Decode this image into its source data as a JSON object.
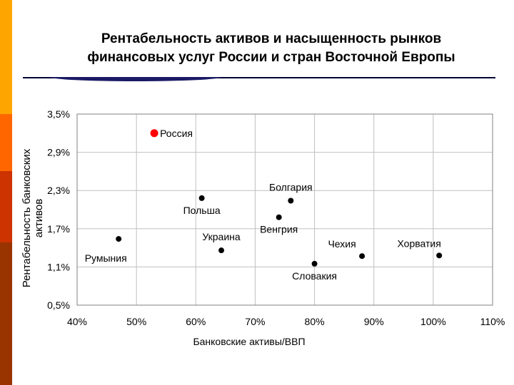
{
  "slide": {
    "title_line1": "Рентабельность активов и насыщенность рынков",
    "title_line2": "финансовых услуг России и стран Восточной Европы",
    "side_colors": [
      "#FFA500",
      "#FF6600",
      "#CC3300",
      "#993300"
    ]
  },
  "chart_data": {
    "type": "scatter",
    "xlabel": "Банковские активы/ВВП",
    "ylabel": "Рентабельность банковских активов",
    "xlim": [
      0.4,
      1.1
    ],
    "ylim": [
      0.005,
      0.035
    ],
    "x_ticks": [
      0.4,
      0.5,
      0.6,
      0.7,
      0.8,
      0.9,
      1.0,
      1.1
    ],
    "x_tick_labels": [
      "40%",
      "50%",
      "60%",
      "70%",
      "80%",
      "90%",
      "100%",
      "110%"
    ],
    "y_ticks": [
      0.005,
      0.011,
      0.017,
      0.023,
      0.029,
      0.035
    ],
    "y_tick_labels": [
      "0,5%",
      "1,1%",
      "1,7%",
      "2,3%",
      "2,9%",
      "3,5%"
    ],
    "grid": true,
    "points": [
      {
        "label": "Россия",
        "x": 0.53,
        "y": 0.032,
        "color": "#FF0000",
        "label_pos": "right"
      },
      {
        "label": "Польша",
        "x": 0.61,
        "y": 0.0218,
        "color": "#000000",
        "label_pos": "below"
      },
      {
        "label": "Болгария",
        "x": 0.76,
        "y": 0.0214,
        "color": "#000000",
        "label_pos": "above"
      },
      {
        "label": "Венгрия",
        "x": 0.74,
        "y": 0.0188,
        "color": "#000000",
        "label_pos": "below"
      },
      {
        "label": "Румыния",
        "x": 0.47,
        "y": 0.0154,
        "color": "#000000",
        "label_pos": "below-left"
      },
      {
        "label": "Украина",
        "x": 0.643,
        "y": 0.0136,
        "color": "#000000",
        "label_pos": "above"
      },
      {
        "label": "Словакия",
        "x": 0.8,
        "y": 0.0115,
        "color": "#000000",
        "label_pos": "below"
      },
      {
        "label": "Чехия",
        "x": 0.88,
        "y": 0.0127,
        "color": "#000000",
        "label_pos": "above-left"
      },
      {
        "label": "Хорватия",
        "x": 1.01,
        "y": 0.0128,
        "color": "#000000",
        "label_pos": "above-left"
      }
    ]
  }
}
